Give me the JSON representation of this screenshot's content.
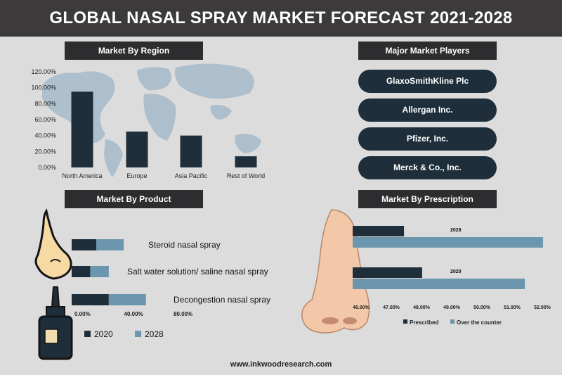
{
  "header": {
    "title": "GLOBAL NASAL SPRAY MARKET FORECAST 2021-2028"
  },
  "sections": {
    "region": "Market By Region",
    "players": "Major Market Players",
    "product": "Market By Product",
    "prescription": "Market By Prescription"
  },
  "players": [
    "GlaxoSmithKline Plc",
    "Allergan Inc.",
    "Pfizer, Inc.",
    "Merck & Co., Inc."
  ],
  "footer": {
    "url": "www.inkwoodresearch.com"
  },
  "colors": {
    "dark": "#1e2f3b",
    "light": "#6b96ad",
    "panel": "#2d2c2e",
    "map": "#a9bccb"
  },
  "chart_data": [
    {
      "id": "region",
      "type": "bar",
      "title": "Market By Region",
      "categories": [
        "North America",
        "Europe",
        "Asia Pacific",
        "Rest of World"
      ],
      "values": [
        95,
        45,
        40,
        14
      ],
      "yticks": [
        "0.00%",
        "20.00%",
        "40.00%",
        "60.00%",
        "80.00%",
        "100.00%",
        "120.00%"
      ],
      "ylim": [
        0,
        120
      ]
    },
    {
      "id": "product",
      "type": "bar",
      "orientation": "horizontal",
      "stacked": true,
      "title": "Market By Product",
      "categories": [
        "Steroid nasal spray",
        "Salt water solution/ saline nasal spray",
        "Decongestion nasal spray"
      ],
      "series": [
        {
          "name": "2020",
          "values": [
            20,
            15,
            30
          ]
        },
        {
          "name": "2028",
          "values": [
            22,
            15,
            30
          ]
        }
      ],
      "xticks": [
        "0.00%",
        "40.00%",
        "80.00%"
      ],
      "xlim": [
        0,
        80
      ],
      "legend": "bottom"
    },
    {
      "id": "prescription",
      "type": "bar",
      "orientation": "horizontal",
      "title": "Market By Prescription",
      "categories": [
        "2028",
        "2020"
      ],
      "series": [
        {
          "name": "Prescribed",
          "values": [
            47.7,
            48.3
          ]
        },
        {
          "name": "Over the counter",
          "values": [
            52.3,
            51.7
          ]
        }
      ],
      "xticks": [
        "46.00%",
        "47.00%",
        "48.00%",
        "49.00%",
        "50.00%",
        "51.00%",
        "52.00%"
      ],
      "xlim": [
        46,
        52
      ],
      "legend": "bottom"
    }
  ]
}
